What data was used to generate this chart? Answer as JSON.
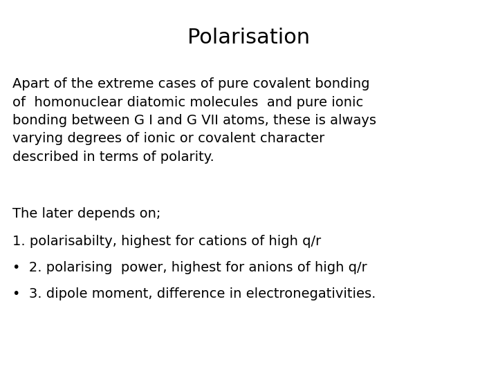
{
  "title": "Polarisation",
  "title_fontsize": 22,
  "background_color": "#ffffff",
  "text_color": "#000000",
  "body_fontsize": 14,
  "paragraph1": "Apart of the extreme cases of pure covalent bonding\nof  homonuclear diatomic molecules  and pure ionic\nbonding between G I and G VII atoms, these is always\nvarying degrees of ionic or covalent character\ndescribed in terms of polarity.",
  "paragraph2": "The later depends on;",
  "item1": "1. polarisabilty, highest for cations of high q/r",
  "item2": "•  2. polarising  power, highest for anions of high q/r",
  "item3": "•  3. dipole moment, difference in electronegativities."
}
